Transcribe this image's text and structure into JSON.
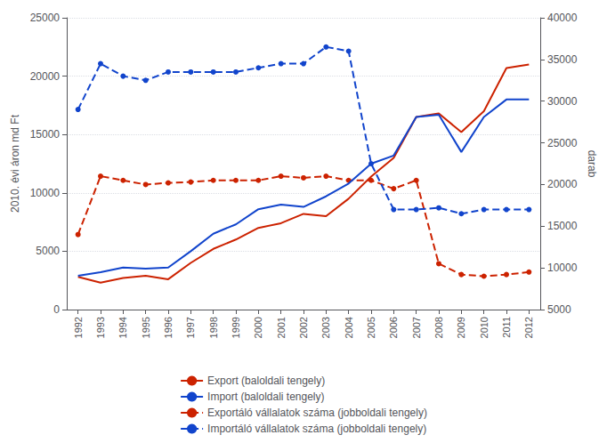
{
  "chart_data": {
    "type": "line",
    "x": [
      1992,
      1993,
      1994,
      1995,
      1996,
      1997,
      1998,
      1999,
      2000,
      2001,
      2002,
      2003,
      2004,
      2005,
      2006,
      2007,
      2008,
      2009,
      2010,
      2011,
      2012
    ],
    "xlim": [
      1991.5,
      2012.5
    ],
    "xticks": [
      1992,
      1993,
      1994,
      1995,
      1996,
      1997,
      1998,
      1999,
      2000,
      2001,
      2002,
      2003,
      2004,
      2005,
      2006,
      2007,
      2008,
      2009,
      2010,
      2011,
      2012
    ],
    "ylabel": "2010. évi áron md Ft",
    "y2label": "darab",
    "ylim": [
      0,
      25000
    ],
    "yticks": [
      0,
      5000,
      10000,
      15000,
      20000,
      25000
    ],
    "y2lim": [
      5000,
      40000
    ],
    "y2ticks": [
      5000,
      10000,
      15000,
      20000,
      25000,
      30000,
      35000,
      40000
    ],
    "grid": true,
    "legend": "bottom",
    "series": [
      {
        "name": "Export (baloldali tengely)",
        "color": "#cc2200",
        "line_style": "solid",
        "marker": "none",
        "values": [
          2800,
          2300,
          2700,
          2900,
          2600,
          4000,
          5200,
          6000,
          7000,
          7400,
          8200,
          8000,
          9500,
          11400,
          13000,
          16500,
          16800,
          15200,
          17000,
          20700,
          21000
        ]
      },
      {
        "name": "Import (baloldali tengely)",
        "color": "#1144cc",
        "line_style": "solid",
        "marker": "none",
        "values": [
          2900,
          3200,
          3600,
          3500,
          3600,
          5000,
          6500,
          7300,
          8600,
          9000,
          8800,
          9700,
          10800,
          12500,
          13200,
          16500,
          16700,
          13500,
          16500,
          18000,
          18000
        ]
      },
      {
        "name": "Exportáló vállalatok száma (jobboldali tengely)",
        "color": "#cc2200",
        "line_style": "dashed",
        "marker": "circle",
        "axis": "y2",
        "values": [
          14000,
          21000,
          20500,
          20000,
          20200,
          20300,
          20500,
          20500,
          20500,
          21000,
          20800,
          21000,
          20500,
          20500,
          19500,
          20500,
          10500,
          9200,
          9000,
          9200,
          9500
        ]
      },
      {
        "name": "Importáló vállalatok száma (jobboldali tengely)",
        "color": "#1144cc",
        "line_style": "dashed",
        "marker": "circle",
        "axis": "y2",
        "values": [
          29000,
          34500,
          33000,
          32500,
          33500,
          33500,
          33500,
          33500,
          34000,
          34500,
          34500,
          36500,
          36000,
          22500,
          17000,
          17000,
          17200,
          16500,
          17000,
          17000,
          17000
        ]
      }
    ]
  }
}
